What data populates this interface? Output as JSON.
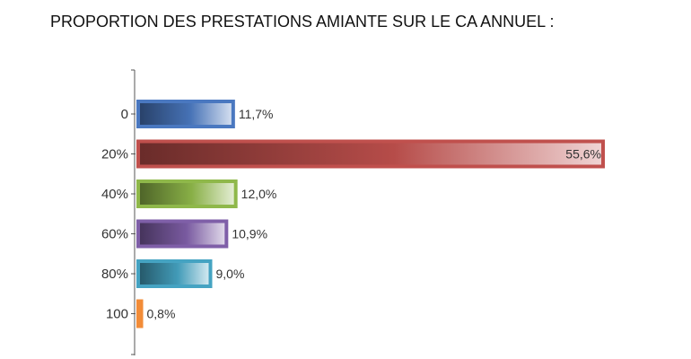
{
  "chart_data": {
    "type": "bar",
    "orientation": "horizontal",
    "title": "PROPORTION DES PRESTATIONS AMIANTE SUR LE CA ANNUEL :",
    "categories": [
      "0",
      "20%",
      "40%",
      "60%",
      "80%",
      "100"
    ],
    "values": [
      11.7,
      55.6,
      12.0,
      10.9,
      9.0,
      0.8
    ],
    "value_labels": [
      "11,7%",
      "55,6%",
      "12,0%",
      "10,9%",
      "9,0%",
      "0,8%"
    ],
    "colors": [
      "#4a78c0",
      "#c0504d",
      "#8fb84a",
      "#7f5fa8",
      "#45a3c2",
      "#f28c38"
    ],
    "xlim": [
      0,
      55.6
    ],
    "grid": false,
    "legend": "none"
  }
}
